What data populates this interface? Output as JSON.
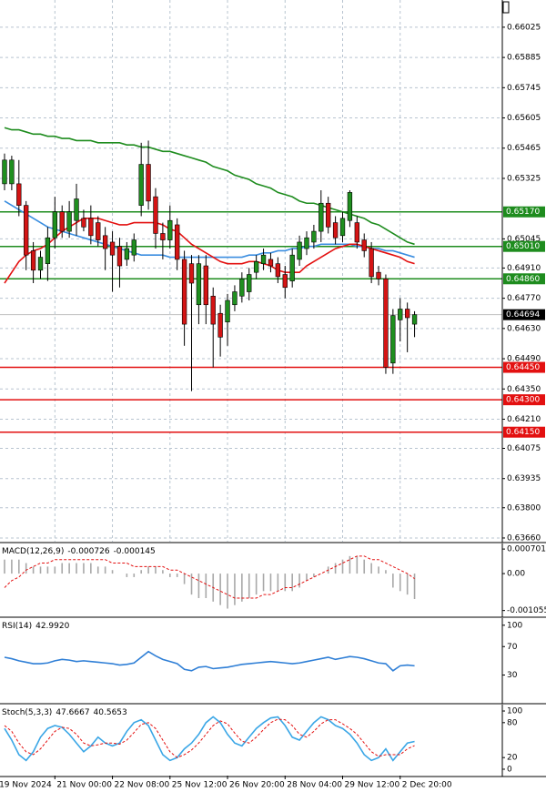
{
  "chart_data": [
    {
      "type": "candlestick",
      "open": [
        0.653,
        0.653,
        0.653,
        0.652,
        0.6499,
        0.649,
        0.6493,
        0.6505,
        0.6517,
        0.6508,
        0.6513,
        0.6514,
        0.6514,
        0.6512,
        0.6506,
        0.6503,
        0.6501,
        0.6495,
        0.6497,
        0.652,
        0.6539,
        0.6524,
        0.6507,
        0.6504,
        0.6511,
        0.6495,
        0.6493,
        0.6474,
        0.6492,
        0.6478,
        0.647,
        0.6466,
        0.6474,
        0.6478,
        0.648,
        0.6489,
        0.6493,
        0.6495,
        0.6493,
        0.6488,
        0.6485,
        0.6495,
        0.65,
        0.6503,
        0.6508,
        0.6521,
        0.6512,
        0.6506,
        0.6513,
        0.6512,
        0.6504,
        0.65,
        0.6489,
        0.6486,
        0.6447,
        0.6467,
        0.6472,
        0.6465
      ],
      "high": [
        0.6544,
        0.6543,
        0.6541,
        0.6522,
        0.6503,
        0.6499,
        0.651,
        0.6524,
        0.652,
        0.6522,
        0.653,
        0.6518,
        0.652,
        0.6515,
        0.651,
        0.6508,
        0.6505,
        0.6503,
        0.6507,
        0.6549,
        0.655,
        0.6528,
        0.6512,
        0.652,
        0.6514,
        0.6499,
        0.6497,
        0.6497,
        0.6497,
        0.6482,
        0.6474,
        0.6479,
        0.6483,
        0.6489,
        0.6491,
        0.6497,
        0.65,
        0.6498,
        0.6496,
        0.6492,
        0.65,
        0.6506,
        0.6508,
        0.6511,
        0.6527,
        0.6524,
        0.6515,
        0.6517,
        0.6527,
        0.6515,
        0.6507,
        0.6503,
        0.6492,
        0.6488,
        0.6472,
        0.6477,
        0.6475,
        0.6471
      ],
      "low": [
        0.6527,
        0.6527,
        0.6515,
        0.649,
        0.6484,
        0.6486,
        0.6485,
        0.65,
        0.6505,
        0.6505,
        0.6506,
        0.6508,
        0.6502,
        0.6501,
        0.649,
        0.648,
        0.6482,
        0.6492,
        0.6494,
        0.6515,
        0.6518,
        0.65,
        0.6495,
        0.65,
        0.649,
        0.6455,
        0.6434,
        0.6465,
        0.6465,
        0.6445,
        0.645,
        0.6455,
        0.6471,
        0.6475,
        0.6476,
        0.6486,
        0.649,
        0.6489,
        0.6484,
        0.6477,
        0.6482,
        0.6492,
        0.6497,
        0.65,
        0.6503,
        0.6507,
        0.6502,
        0.6503,
        0.651,
        0.65,
        0.6496,
        0.6484,
        0.6483,
        0.6442,
        0.6442,
        0.6457,
        0.6452,
        0.6459
      ],
      "close": [
        0.6541,
        0.6541,
        0.652,
        0.6497,
        0.649,
        0.6496,
        0.6505,
        0.6517,
        0.6508,
        0.6517,
        0.6523,
        0.651,
        0.6506,
        0.6504,
        0.65,
        0.6497,
        0.6492,
        0.65,
        0.6504,
        0.6539,
        0.6522,
        0.6507,
        0.6504,
        0.6513,
        0.6495,
        0.6465,
        0.6484,
        0.6493,
        0.6474,
        0.6465,
        0.6459,
        0.6476,
        0.648,
        0.6486,
        0.6488,
        0.6494,
        0.6497,
        0.6492,
        0.6487,
        0.6482,
        0.6497,
        0.6503,
        0.6505,
        0.6508,
        0.6521,
        0.651,
        0.6505,
        0.6514,
        0.6526,
        0.6503,
        0.6499,
        0.6487,
        0.6486,
        0.6445,
        0.6469,
        0.6472,
        0.6468,
        0.64694
      ],
      "up_color": "#1f8f1f",
      "down_color": "#d41414",
      "ylim": [
        0.63643,
        0.66151
      ],
      "yticks": [
        0.66025,
        0.65885,
        0.65745,
        0.65605,
        0.65465,
        0.65325,
        0.65045,
        {
          "value": 0.6491,
          "label": "0.64910"
        },
        {
          "value": 0.6477,
          "label": "0.64770"
        },
        {
          "value": 0.6463,
          "label": "0.64630"
        },
        {
          "value": 0.6449,
          "label": "0.64490"
        },
        {
          "value": 0.6435,
          "label": "0.64350"
        },
        {
          "value": 0.6421,
          "label": "0.64210"
        },
        0.64075,
        0.63935,
        {
          "value": 0.638,
          "label": "0.63800"
        },
        {
          "value": 0.6366,
          "label": "0.63660"
        }
      ],
      "grid": true,
      "series": [
        {
          "color": "#1e8c1e",
          "values": [
            0.6556,
            0.6555,
            0.6555,
            0.6554,
            0.6553,
            0.6553,
            0.6552,
            0.6552,
            0.6551,
            0.6551,
            0.655,
            0.655,
            0.655,
            0.6549,
            0.6549,
            0.6549,
            0.6549,
            0.6548,
            0.6548,
            0.6547,
            0.6547,
            0.6546,
            0.6545,
            0.6545,
            0.6544,
            0.6543,
            0.6542,
            0.6541,
            0.654,
            0.6538,
            0.6537,
            0.6536,
            0.6534,
            0.6533,
            0.6532,
            0.653,
            0.6529,
            0.6528,
            0.6526,
            0.6525,
            0.6524,
            0.6522,
            0.6521,
            0.6521,
            0.652,
            0.6519,
            0.6518,
            0.6517,
            0.6516,
            0.6515,
            0.6514,
            0.6512,
            0.6511,
            0.6509,
            0.6507,
            0.6505,
            0.6503,
            0.6502
          ]
        },
        {
          "color": "#3b8ee0",
          "values": [
            0.6522,
            0.652,
            0.6518,
            0.6516,
            0.6514,
            0.6512,
            0.651,
            0.6509,
            0.6508,
            0.6507,
            0.6506,
            0.6505,
            0.6504,
            0.6503,
            0.6502,
            0.6501,
            0.65,
            0.6499,
            0.6498,
            0.6497,
            0.6497,
            0.6497,
            0.6497,
            0.6496,
            0.6496,
            0.6496,
            0.6496,
            0.6496,
            0.6496,
            0.6496,
            0.6496,
            0.6496,
            0.6496,
            0.6496,
            0.6497,
            0.6497,
            0.6498,
            0.6498,
            0.6499,
            0.6499,
            0.65,
            0.65,
            0.6501,
            0.6501,
            0.6502,
            0.6502,
            0.6502,
            0.6502,
            0.6502,
            0.6501,
            0.6501,
            0.65,
            0.65,
            0.6499,
            0.6499,
            0.6498,
            0.6497,
            0.6496
          ]
        },
        {
          "color": "#e31010",
          "values": [
            0.6484,
            0.6489,
            0.6494,
            0.6497,
            0.6499,
            0.65,
            0.6502,
            0.6505,
            0.6508,
            0.651,
            0.6512,
            0.6514,
            0.6514,
            0.6514,
            0.6513,
            0.6512,
            0.6511,
            0.6511,
            0.6512,
            0.6512,
            0.6512,
            0.6512,
            0.6511,
            0.6509,
            0.6508,
            0.6505,
            0.6502,
            0.65,
            0.6498,
            0.6496,
            0.6494,
            0.6493,
            0.6493,
            0.6493,
            0.6494,
            0.6494,
            0.6493,
            0.6492,
            0.649,
            0.6489,
            0.6489,
            0.6489,
            0.6492,
            0.6494,
            0.6496,
            0.6498,
            0.65,
            0.6501,
            0.6502,
            0.6502,
            0.6501,
            0.65,
            0.6499,
            0.6498,
            0.6497,
            0.6496,
            0.6494,
            0.6493
          ]
        }
      ],
      "levels": [
        {
          "value": 0.6517,
          "label": "0.65170",
          "color": "#1e8c1e"
        },
        {
          "value": 0.6501,
          "label": "0.65010",
          "color": "#1e8c1e"
        },
        {
          "value": 0.6486,
          "label": "0.64860",
          "color": "#1e8c1e"
        },
        {
          "value": 0.6445,
          "label": "0.64450",
          "color": "#e31010"
        },
        {
          "value": 0.643,
          "label": "0.64300",
          "color": "#e31010"
        },
        {
          "value": 0.6415,
          "label": "0.64150",
          "color": "#e31010"
        }
      ],
      "last": {
        "value": 0.64694,
        "label": "0.64694"
      }
    },
    {
      "type": "macd",
      "title": "MACD(12,26,9)",
      "readouts": [
        "-0.000726",
        "-0.000145"
      ],
      "ylim": [
        -0.00122,
        0.00086
      ],
      "yticks": [
        0.000701,
        {
          "value": 0,
          "label": "0.00"
        },
        -0.001055
      ],
      "series": [
        {
          "color": "#a8a8a8",
          "style": "bar",
          "values": [
            0.0004,
            0.0004,
            0.0004,
            0.0003,
            0.0002,
            0.0002,
            0.0002,
            0.0002,
            0.0003,
            0.0003,
            0.0003,
            0.0003,
            0.0003,
            0.0002,
            0.0002,
            0.0001,
            0.0,
            -0.0001,
            -0.0001,
            0.0001,
            0.0002,
            0.0002,
            0.0001,
            -0.0001,
            -0.0001,
            -0.0003,
            -0.0006,
            -0.0007,
            -0.0007,
            -0.0008,
            -0.0009,
            -0.001,
            -0.0009,
            -0.0008,
            -0.0007,
            -0.0006,
            -0.0005,
            -0.0005,
            -0.0005,
            -0.0005,
            -0.0005,
            -0.0004,
            -0.0002,
            -0.0001,
            0.0,
            0.0002,
            0.0003,
            0.0004,
            0.0005,
            0.0005,
            0.0004,
            0.0003,
            0.0002,
            0.0001,
            -0.0004,
            -0.0005,
            -0.0006,
            -0.000726
          ]
        },
        {
          "color": "#e31010",
          "style": "dashed",
          "values": [
            -0.0004,
            -0.0002,
            -0.0001,
            0.0001,
            0.0002,
            0.0003,
            0.0003,
            0.0004,
            0.0004,
            0.0004,
            0.0004,
            0.0004,
            0.0004,
            0.0004,
            0.0004,
            0.0003,
            0.0003,
            0.0003,
            0.0002,
            0.0002,
            0.0002,
            0.0002,
            0.0002,
            0.0001,
            0.0001,
            0.0,
            -0.0001,
            -0.0002,
            -0.0003,
            -0.0004,
            -0.0005,
            -0.0006,
            -0.0007,
            -0.0007,
            -0.0007,
            -0.0007,
            -0.0006,
            -0.0006,
            -0.0005,
            -0.0004,
            -0.0004,
            -0.0003,
            -0.0002,
            -0.0001,
            0.0,
            0.0001,
            0.0002,
            0.0003,
            0.0004,
            0.0005,
            0.0005,
            0.0004,
            0.0004,
            0.0003,
            0.0002,
            0.0001,
            0.0,
            -0.000145
          ]
        }
      ]
    },
    {
      "type": "line",
      "title": "RSI(14)",
      "readouts": [
        "42.9920"
      ],
      "ylim": [
        -9,
        110
      ],
      "yticks": [
        100,
        70,
        30
      ],
      "series": [
        {
          "color": "#2f7fd6",
          "values": [
            55,
            53,
            50,
            48,
            46,
            46,
            47,
            50,
            52,
            51,
            49,
            50,
            49,
            48,
            47,
            46,
            44,
            45,
            47,
            55,
            63,
            57,
            52,
            49,
            46,
            38,
            36,
            41,
            42,
            39,
            40,
            41,
            43,
            45,
            46,
            47,
            48,
            49,
            48,
            47,
            46,
            47,
            49,
            51,
            53,
            55,
            52,
            54,
            56,
            55,
            53,
            50,
            47,
            46,
            36,
            43,
            44,
            42.992
          ]
        }
      ]
    },
    {
      "type": "line",
      "title": "Stoch(5,3,3)",
      "readouts": [
        "47.6667",
        "40.5653"
      ],
      "ylim": [
        -11,
        111
      ],
      "yticks": [
        100,
        80,
        20,
        0
      ],
      "series": [
        {
          "color": "#3aa6e6",
          "values": [
            70,
            50,
            25,
            15,
            30,
            55,
            70,
            75,
            72,
            60,
            45,
            30,
            40,
            55,
            45,
            40,
            45,
            65,
            80,
            85,
            75,
            50,
            25,
            15,
            20,
            35,
            45,
            60,
            80,
            90,
            80,
            60,
            45,
            40,
            55,
            70,
            80,
            88,
            90,
            75,
            55,
            50,
            65,
            80,
            90,
            85,
            75,
            70,
            60,
            45,
            25,
            15,
            20,
            35,
            15,
            30,
            45,
            47.6667
          ]
        },
        {
          "color": "#e31010",
          "style": "dashed",
          "values": [
            75,
            65,
            45,
            30,
            25,
            35,
            50,
            65,
            72,
            70,
            60,
            45,
            40,
            42,
            45,
            45,
            43,
            50,
            63,
            77,
            80,
            70,
            50,
            30,
            20,
            25,
            33,
            45,
            60,
            75,
            83,
            78,
            62,
            48,
            45,
            55,
            68,
            80,
            86,
            85,
            75,
            60,
            55,
            65,
            78,
            85,
            85,
            78,
            70,
            60,
            45,
            30,
            22,
            25,
            25,
            25,
            35,
            40.5653
          ]
        }
      ],
      "xlim": [
        -0.63,
        69.2
      ],
      "xticks": [
        {
          "value": -1,
          "label": "19 Nov 2024"
        },
        {
          "value": 7,
          "label": "21 Nov 00:00"
        },
        {
          "value": 15,
          "label": "22 Nov 08:00"
        },
        {
          "value": 23,
          "label": "25 Nov 12:00"
        },
        {
          "value": 31,
          "label": "26 Nov 20:00"
        },
        {
          "value": 39,
          "label": "28 Nov 04:00"
        },
        {
          "value": 47,
          "label": "29 Nov 12:00"
        },
        {
          "value": 55,
          "label": "2 Dec 20:00"
        }
      ]
    }
  ]
}
